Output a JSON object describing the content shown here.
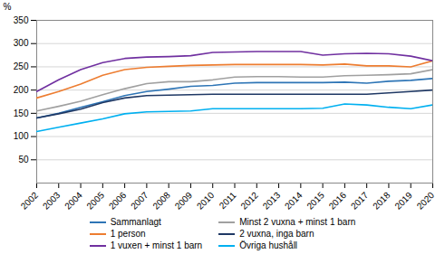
{
  "chart_data": {
    "type": "line",
    "x": [
      2002,
      2003,
      2004,
      2005,
      2006,
      2007,
      2008,
      2009,
      2010,
      2011,
      2012,
      2013,
      2014,
      2015,
      2016,
      2017,
      2018,
      2019,
      2020
    ],
    "series": [
      {
        "name": "Sammanlagt",
        "color": "#2E75B6",
        "values": [
          140,
          150,
          163,
          175,
          188,
          197,
          202,
          208,
          210,
          215,
          216,
          216,
          216,
          216,
          217,
          215,
          219,
          221,
          225
        ]
      },
      {
        "name": "1 person",
        "color": "#ED7D31",
        "values": [
          183,
          197,
          213,
          232,
          244,
          249,
          251,
          253,
          254,
          255,
          255,
          255,
          255,
          254,
          256,
          252,
          252,
          250,
          263
        ]
      },
      {
        "name": "1 vuxen + minst 1 barn",
        "color": "#7030A0",
        "values": [
          197,
          222,
          244,
          259,
          268,
          271,
          272,
          274,
          281,
          282,
          283,
          283,
          283,
          275,
          278,
          279,
          278,
          273,
          263
        ]
      },
      {
        "name": "Minst 2 vuxna + minst 1 barn",
        "color": "#A0A0A0",
        "values": [
          155,
          165,
          176,
          190,
          203,
          214,
          218,
          218,
          222,
          228,
          229,
          229,
          228,
          228,
          231,
          232,
          233,
          235,
          244
        ]
      },
      {
        "name": "2 vuxna, inga barn",
        "color": "#1F3864",
        "values": [
          140,
          149,
          159,
          173,
          183,
          188,
          189,
          190,
          191,
          191,
          191,
          191,
          191,
          191,
          191,
          191,
          194,
          197,
          200
        ]
      },
      {
        "name": "Övriga hushåll",
        "color": "#00B0F0",
        "values": [
          111,
          120,
          129,
          138,
          149,
          153,
          154,
          155,
          160,
          160,
          160,
          160,
          160,
          161,
          170,
          168,
          163,
          160,
          168
        ]
      }
    ],
    "xlim": [
      2002,
      2020
    ],
    "xticks": [
      2002,
      2003,
      2004,
      2005,
      2006,
      2007,
      2008,
      2009,
      2010,
      2011,
      2012,
      2013,
      2014,
      2015,
      2016,
      2017,
      2018,
      2019,
      2020
    ],
    "ylim": [
      0,
      350
    ],
    "yticks": [
      50,
      100,
      150,
      200,
      250,
      300,
      350
    ],
    "ylabel": "%",
    "grid": true,
    "legend": "bottom"
  }
}
